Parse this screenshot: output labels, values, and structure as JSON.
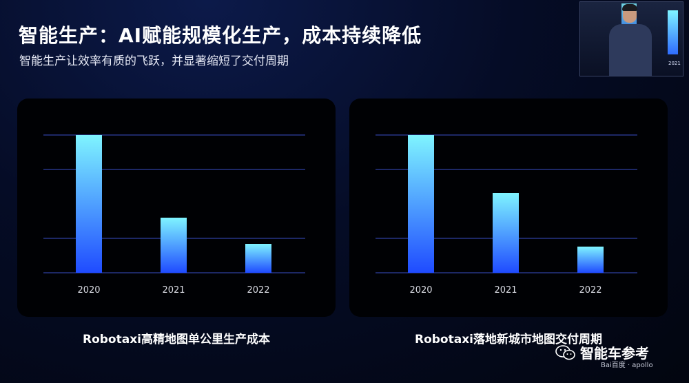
{
  "slide": {
    "title": "智能生产：AI赋能规模化生产，成本持续降低",
    "subtitle": "智能生产让效率有质的飞跃，并显著缩短了交付周期"
  },
  "colors": {
    "bar_top": "#7ff4ff",
    "bar_bottom": "#1f4bff",
    "gridline": "#3a4ec9",
    "panel_bg": "#000104",
    "slide_bg": "#050c26"
  },
  "chart_data": [
    {
      "type": "bar",
      "title": "Robotaxi高精地图单公里生产成本",
      "categories": [
        "2020",
        "2021",
        "2022"
      ],
      "values": [
        100,
        40,
        21
      ],
      "ylim": [
        0,
        100
      ],
      "grid": true,
      "legend": "none"
    },
    {
      "type": "bar",
      "title": "Robotaxi落地新城市地图交付周期",
      "categories": [
        "2020",
        "2021",
        "2022"
      ],
      "values": [
        100,
        58,
        19
      ],
      "ylim": [
        0,
        100
      ],
      "grid": true,
      "legend": "none"
    }
  ],
  "video_inset": {
    "year_label": "2021"
  },
  "watermark": {
    "text": "智能车参考",
    "icon": "wechat-icon",
    "logos": "Bai百度 · apollo"
  }
}
